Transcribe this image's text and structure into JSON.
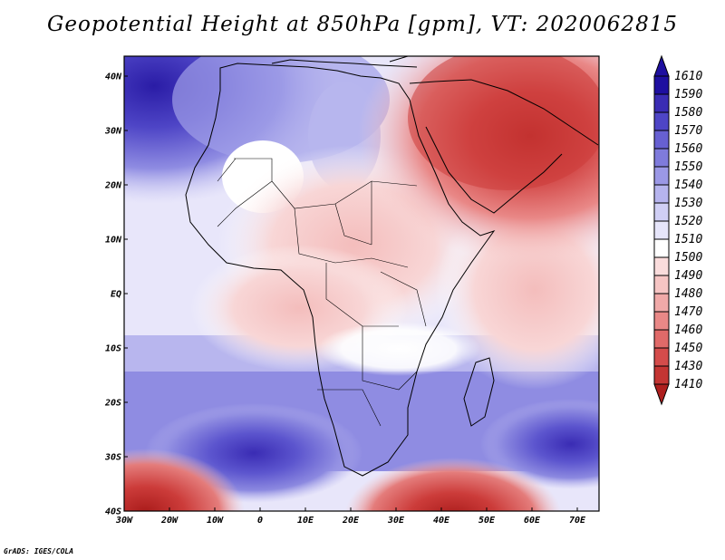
{
  "title": "Geopotential Height at 850hPa [gpm], VT: 2020062815",
  "credit": "GrADS: IGES/COLA",
  "axes": {
    "lon_ticks": [
      "30W",
      "20W",
      "10W",
      "0",
      "10E",
      "20E",
      "30E",
      "40E",
      "50E",
      "60E",
      "70E"
    ],
    "lat_ticks": [
      "40N",
      "30N",
      "20N",
      "10N",
      "EQ",
      "10S",
      "20S",
      "30S",
      "40S"
    ]
  },
  "colorbar": {
    "levels": [
      {
        "label": "1610",
        "color": "#1e0fa0"
      },
      {
        "label": "1590",
        "color": "#3a2cb4"
      },
      {
        "label": "1580",
        "color": "#4e45c6"
      },
      {
        "label": "1570",
        "color": "#6760d2"
      },
      {
        "label": "1560",
        "color": "#7f7bdc"
      },
      {
        "label": "1550",
        "color": "#9b98e6"
      },
      {
        "label": "1540",
        "color": "#b6b4ee"
      },
      {
        "label": "1530",
        "color": "#d0cff5"
      },
      {
        "label": "1520",
        "color": "#e6e5fa"
      },
      {
        "label": "1510",
        "color": "#ffffff"
      },
      {
        "label": "1500",
        "color": "#fadcdc"
      },
      {
        "label": "1490",
        "color": "#f6c5c4"
      },
      {
        "label": "1480",
        "color": "#f0a9a8"
      },
      {
        "label": "1470",
        "color": "#e98887"
      },
      {
        "label": "1460",
        "color": "#e06a69"
      },
      {
        "label": "1450",
        "color": "#d44c4b"
      },
      {
        "label": "1430",
        "color": "#c43533"
      },
      {
        "label": "1410",
        "color": "#ae1f1e"
      }
    ]
  }
}
